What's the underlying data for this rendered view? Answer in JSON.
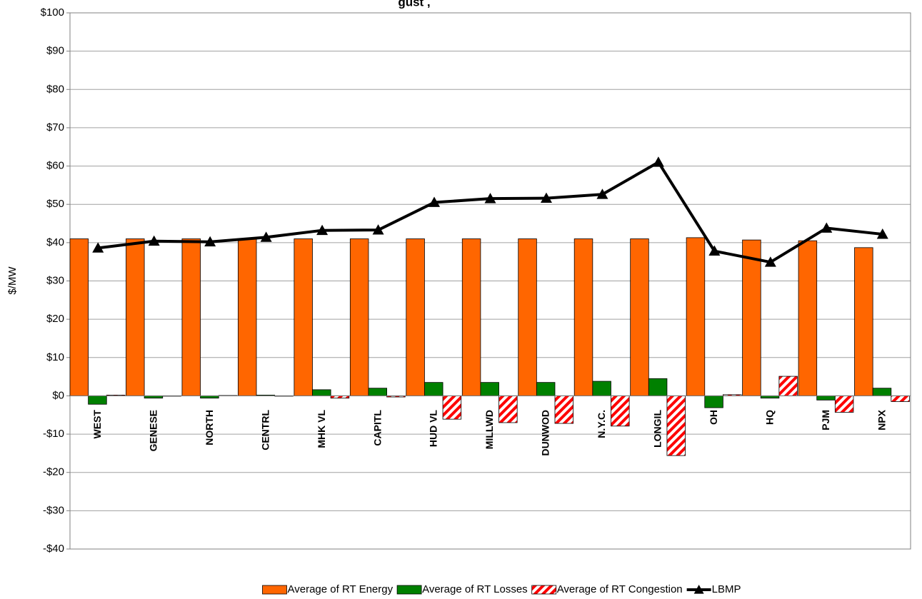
{
  "chart_data": {
    "type": "bar",
    "title": "gust ,",
    "y_label": "$/MW",
    "categories": [
      "WEST",
      "GENESE",
      "NORTH",
      "CENTRL",
      "MHK VL",
      "CAPITL",
      "HUD VL",
      "MILLWD",
      "DUNWOD",
      "N.Y.C.",
      "LONGIL",
      "OH",
      "HQ",
      "PJM",
      "NPX"
    ],
    "series": [
      {
        "name": "Average of RT Energy",
        "type": "bar",
        "color": "#ff6600",
        "values": [
          41,
          41,
          41,
          41,
          41,
          41,
          41,
          41,
          41,
          41,
          41,
          41.3,
          40.7,
          40.5,
          38.7
        ]
      },
      {
        "name": "Average of RT Losses",
        "type": "bar",
        "color": "#008000",
        "values": [
          -2.2,
          -0.6,
          -0.6,
          0.2,
          1.6,
          2.0,
          3.5,
          3.5,
          3.5,
          3.8,
          4.5,
          -3.1,
          -0.6,
          -1.1,
          2.0
        ]
      },
      {
        "name": "Average of RT Congestion",
        "type": "bar",
        "color": "#ff0000",
        "hatch": true,
        "values": [
          0.2,
          -0.1,
          0.1,
          -0.1,
          -0.6,
          -0.3,
          -6.1,
          -7.0,
          -7.2,
          -7.9,
          -15.6,
          0.3,
          5.1,
          -4.3,
          -1.5
        ]
      },
      {
        "name": "LBMP",
        "type": "line",
        "color": "#000000",
        "values": [
          38.6,
          40.4,
          40.2,
          41.4,
          43.2,
          43.3,
          50.5,
          51.5,
          51.6,
          52.6,
          61.0,
          37.8,
          34.9,
          43.8,
          42.2
        ]
      }
    ],
    "ylim": [
      -40,
      100
    ],
    "yticks": [
      {
        "value": -40,
        "label": "-$40"
      },
      {
        "value": -30,
        "label": "-$30"
      },
      {
        "value": -20,
        "label": "-$20"
      },
      {
        "value": -10,
        "label": "-$10"
      },
      {
        "value": 0,
        "label": "$0"
      },
      {
        "value": 10,
        "label": "$10"
      },
      {
        "value": 20,
        "label": "$20"
      },
      {
        "value": 30,
        "label": "$30"
      },
      {
        "value": 40,
        "label": "$40"
      },
      {
        "value": 50,
        "label": "$50"
      },
      {
        "value": 60,
        "label": "$60"
      },
      {
        "value": 70,
        "label": "$70"
      },
      {
        "value": 80,
        "label": "$80"
      },
      {
        "value": 90,
        "label": "$90"
      },
      {
        "value": 100,
        "label": "$100"
      }
    ],
    "grid": true,
    "legend": "bottom"
  }
}
